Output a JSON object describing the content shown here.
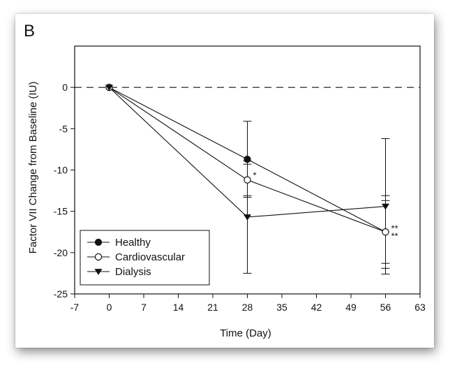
{
  "chart_data": {
    "type": "line",
    "panel_label": "B",
    "xlabel": "Time (Day)",
    "ylabel": "Factor VII Change from Baseline (IU)",
    "xlim": [
      -7,
      63
    ],
    "ylim": [
      -25,
      5
    ],
    "xticks": [
      -7,
      0,
      7,
      14,
      21,
      28,
      35,
      42,
      49,
      56,
      63
    ],
    "yticks": [
      0,
      -5,
      -10,
      -15,
      -20,
      -25
    ],
    "baseline_y": 0,
    "legend_position": "bottom-left",
    "series": [
      {
        "name": "Healthy",
        "marker": "filled-circle",
        "x": [
          0,
          28,
          56
        ],
        "y": [
          0,
          -8.7,
          -17.5
        ],
        "err": [
          0,
          4.6,
          4.4
        ]
      },
      {
        "name": "Cardiovascular",
        "marker": "open-circle",
        "x": [
          0,
          28,
          56
        ],
        "y": [
          0,
          -11.2,
          -17.5
        ],
        "err": [
          0,
          1.9,
          3.8
        ]
      },
      {
        "name": "Dialysis",
        "marker": "filled-triangle",
        "x": [
          0,
          28,
          56
        ],
        "y": [
          0,
          -15.7,
          -14.4
        ],
        "err": [
          0,
          6.8,
          8.2
        ]
      }
    ],
    "annotations": [
      {
        "text": "*",
        "x": 28,
        "y": -11.2
      },
      {
        "text": "**",
        "x": 56,
        "y": -17.5,
        "stack": 0
      },
      {
        "text": "**",
        "x": 56,
        "y": -17.5,
        "stack": 1
      }
    ]
  }
}
